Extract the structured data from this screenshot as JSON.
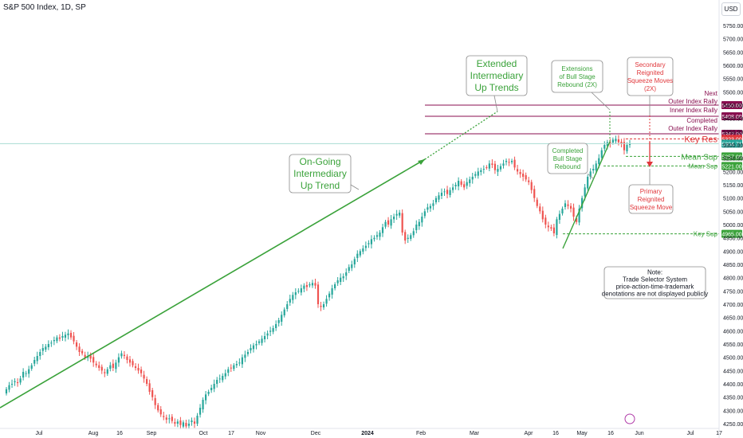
{
  "header": {
    "title": "S&P 500 Index, 1D, SP",
    "currency": "USD"
  },
  "colors": {
    "up": "#26a69a",
    "down": "#ef5350",
    "green": "#3aa23a",
    "red": "#e0373b",
    "maroon": "#880e4f",
    "teal_line": "#22ab94"
  },
  "chart_data": {
    "type": "candlestick",
    "title": "S&P 500 Index, 1D, SP",
    "ylim": [
      4250,
      5800
    ],
    "y_ticks": [
      4250,
      4300,
      4350,
      4400,
      4450,
      4500,
      4550,
      4600,
      4650,
      4700,
      4750,
      4800,
      4850,
      4900,
      4950,
      5000,
      5050,
      5100,
      5150,
      5200,
      5250,
      5300,
      5350,
      5400,
      5450,
      5500,
      5550,
      5600,
      5650,
      5700,
      5750
    ],
    "y_tick_labels": [
      "4250.00",
      "4300.00",
      "4350.00",
      "4400.00",
      "4450.00",
      "4500.00",
      "4550.00",
      "4600.00",
      "4650.00",
      "4700.00",
      "4750.00",
      "4800.00",
      "4850.00",
      "4900.00",
      "4950.00",
      "5000.00",
      "5050.00",
      "5100.00",
      "5150.00",
      "5200.00",
      "5250.00",
      "5300.00",
      "5350.00",
      "5400.00",
      "5450.00",
      "5500.00",
      "5550.00",
      "5600.00",
      "5650.00",
      "5700.00",
      "5750.00"
    ],
    "x_axis_labels": [
      "Jul",
      "Aug",
      "16",
      "Sep",
      "Oct",
      "17",
      "Nov",
      "Dec",
      "2024",
      "Feb",
      "Mar",
      "Apr",
      "16",
      "May",
      "16",
      "Jun",
      "Jul",
      "17"
    ],
    "series_close": [
      4380,
      4395,
      4400,
      4410,
      4405,
      4420,
      4445,
      4440,
      4455,
      4470,
      4490,
      4505,
      4520,
      4535,
      4540,
      4550,
      4555,
      4565,
      4575,
      4570,
      4580,
      4585,
      4590,
      4575,
      4560,
      4540,
      4520,
      4515,
      4500,
      4505,
      4495,
      4480,
      4470,
      4460,
      4450,
      4440,
      4455,
      4470,
      4460,
      4480,
      4500,
      4515,
      4505,
      4490,
      4480,
      4470,
      4460,
      4450,
      4440,
      4420,
      4400,
      4370,
      4350,
      4320,
      4300,
      4285,
      4275,
      4265,
      4270,
      4260,
      4250,
      4258,
      4245,
      4255,
      4240,
      4250,
      4262,
      4250,
      4280,
      4310,
      4340,
      4360,
      4370,
      4385,
      4400,
      4415,
      4420,
      4430,
      4440,
      4455,
      4460,
      4470,
      4475,
      4480,
      4500,
      4510,
      4520,
      4535,
      4545,
      4550,
      4560,
      4570,
      4580,
      4590,
      4600,
      4610,
      4625,
      4640,
      4660,
      4680,
      4700,
      4720,
      4735,
      4745,
      4750,
      4760,
      4770,
      4765,
      4775,
      4780,
      4770,
      4700,
      4690,
      4700,
      4720,
      4740,
      4760,
      4775,
      4790,
      4800,
      4805,
      4820,
      4840,
      4850,
      4870,
      4890,
      4900,
      4910,
      4920,
      4930,
      4945,
      4950,
      4960,
      4970,
      4990,
      5010,
      5000,
      5020,
      5030,
      5040,
      5045,
      4970,
      4940,
      4950,
      4960,
      4975,
      5000,
      5010,
      5030,
      5050,
      5065,
      5070,
      5080,
      5100,
      5110,
      5120,
      5125,
      5115,
      5130,
      5140,
      5150,
      5165,
      5150,
      5140,
      5160,
      5170,
      5180,
      5190,
      5200,
      5205,
      5210,
      5215,
      5230,
      5225,
      5205,
      5210,
      5220,
      5230,
      5240,
      5235,
      5240,
      5215,
      5200,
      5190,
      5180,
      5170,
      5160,
      5130,
      5100,
      5070,
      5050,
      5020,
      5000,
      4990,
      4985,
      4967,
      5020,
      5040,
      5060,
      5080,
      5070,
      5060,
      5030,
      5010,
      5060,
      5100,
      5140,
      5180,
      5200,
      5210,
      5230,
      5250,
      5280,
      5300,
      5310,
      5305,
      5320,
      5323,
      5310,
      5305,
      5280,
      5300,
      5304.71
    ],
    "horizontal_levels": [
      {
        "label": "5450.00",
        "value": 5450,
        "color": "#880e4f"
      },
      {
        "label": "5408.00",
        "value": 5408,
        "color": "#880e4f"
      },
      {
        "label": "5342.00",
        "value": 5342,
        "color": "#880e4f"
      },
      {
        "label": "5323.00",
        "value": 5323,
        "color": "#e0373b"
      },
      {
        "label": "5304.71",
        "value": 5304.71,
        "color": "#26a69a"
      },
      {
        "label": "5257.00",
        "value": 5257,
        "color": "#3aa23a"
      },
      {
        "label": "5221.00",
        "value": 5221,
        "color": "#3aa23a"
      },
      {
        "label": "4965.00",
        "value": 4965,
        "color": "#3aa23a"
      }
    ],
    "level_annotations": {
      "next": "Next\nOuter Index Rally",
      "inner": "Inner Index Rally",
      "completed": "Completed\nOuter Index Rally",
      "key_res": "Key Res",
      "mean_sup_1": "Mean Sup",
      "mean_sup_2": "Mean Sup",
      "key_sup": "Key Sup"
    },
    "callouts": {
      "ongoing": "On-Going\nIntermediary\nUp Trend",
      "extended": "Extended\nIntermediary\nUp Trends",
      "extensions": "Extensions\nof Bull Stage\nRebound (2X)",
      "completed_bull": "Completed\nBull Stage\nRebound",
      "secondary": "Secondary\nReignited\nSqueeze Moves\n(2X)",
      "primary": "Primary\nReignited\nSqueeze Move",
      "note": "Note:\nTrade Selector System\nprice-action-time-trademark\ndenotations are not displayed publicly"
    }
  }
}
